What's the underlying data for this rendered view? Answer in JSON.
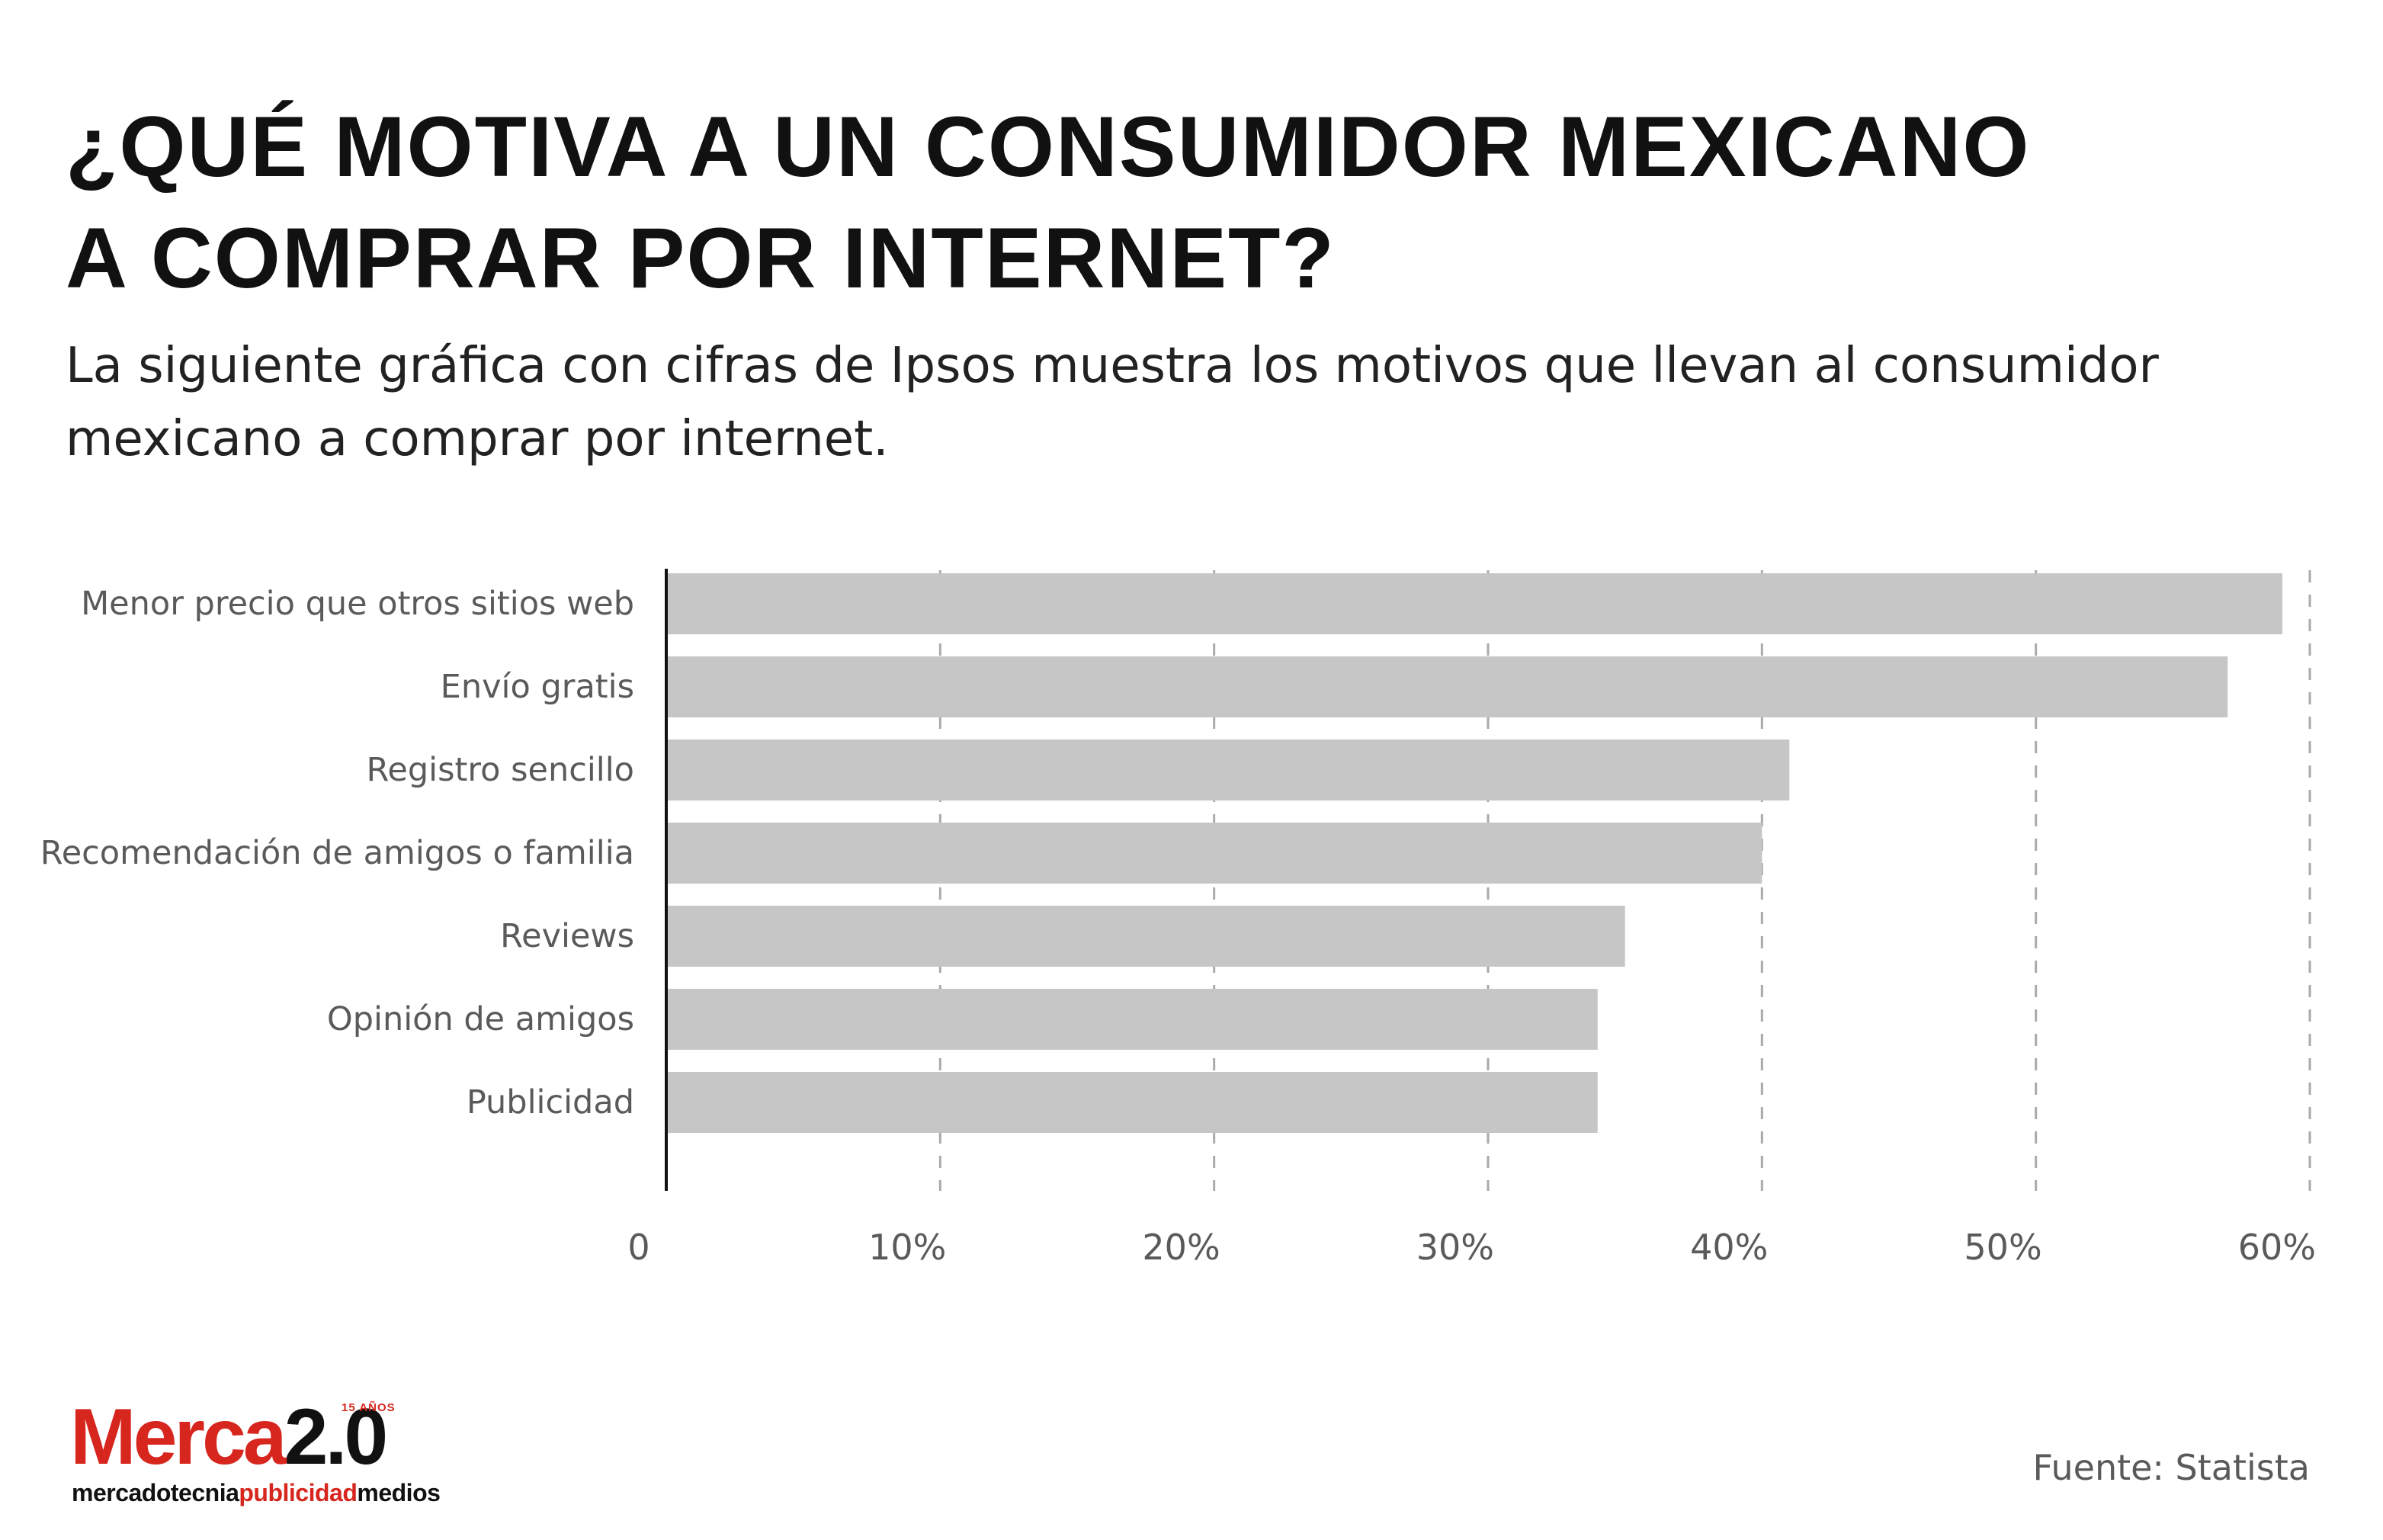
{
  "title_lines": [
    "¿QUÉ MOTIVA A UN CONSUMIDOR MEXICANO",
    "A COMPRAR POR INTERNET?"
  ],
  "subtitle": "La siguiente gráfica con cifras de Ipsos muestra los motivos que llevan al consumidor mexicano a comprar por internet.",
  "source": "Fuente: Statista",
  "logo": {
    "word": "Merca",
    "number": "2.0",
    "badge": "15 AÑOS",
    "tag_1": "mercadotecnia",
    "tag_2": "publicidad",
    "tag_3": "medios"
  },
  "colors": {
    "bar": "#c6c6c6",
    "grid": "#aaaaaa",
    "axis": "#111111",
    "brand_red": "#d7261e"
  },
  "chart_data": {
    "type": "bar",
    "orientation": "horizontal",
    "title": "¿Qué motiva a un consumidor mexicano a comprar por internet?",
    "categories": [
      "Menor precio que otros sitios web",
      "Envío gratis",
      "Registro sencillo",
      "Recomendación de amigos o familia",
      "Reviews",
      "Opinión de amigos",
      "Publicidad"
    ],
    "values": [
      59,
      57,
      41,
      40,
      35,
      34,
      34
    ],
    "unit": "%",
    "xlim": [
      0,
      60
    ],
    "tick_values": [
      0,
      10,
      20,
      30,
      40,
      50,
      60
    ],
    "tick_labels": [
      "0",
      "10%",
      "20%",
      "30%",
      "40%",
      "50%",
      "60%"
    ],
    "grid": "vertical dashed",
    "legend": "none"
  }
}
